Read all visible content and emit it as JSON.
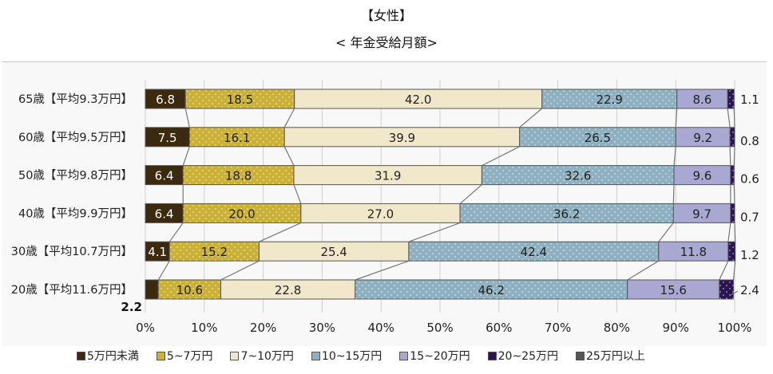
{
  "title": "【女性】",
  "subtitle": "< 年金受給月額>",
  "chart_data": {
    "type": "bar",
    "orientation": "horizontal",
    "stacked": "100%",
    "categories": [
      "65歳【平均9.3万円】",
      "60歳【平均9.5万円】",
      "50歳【平均9.8万円】",
      "40歳【平均9.9万円】",
      "30歳【平均10.7万円】",
      "20歳【平均11.6万円】"
    ],
    "series": [
      {
        "name": "5万円未満",
        "color": "#3b2a0e",
        "values": [
          6.8,
          7.5,
          6.4,
          6.4,
          4.1,
          2.2
        ]
      },
      {
        "name": "5~7万円",
        "color": "#cbb135",
        "values": [
          18.5,
          16.1,
          18.8,
          20.0,
          15.2,
          10.6
        ]
      },
      {
        "name": "7~10万円",
        "color": "#f1e7cb",
        "values": [
          42.0,
          39.9,
          31.9,
          27.0,
          25.4,
          22.8
        ]
      },
      {
        "name": "10~15万円",
        "color": "#8eb0c1",
        "values": [
          22.9,
          26.5,
          32.6,
          36.2,
          42.4,
          46.2
        ]
      },
      {
        "name": "15~20万円",
        "color": "#a9a8d2",
        "values": [
          8.6,
          9.2,
          9.6,
          9.7,
          11.8,
          15.6
        ]
      },
      {
        "name": "20~25万円",
        "color": "#2a1452",
        "values": [
          1.1,
          0.8,
          0.6,
          0.7,
          1.2,
          2.4
        ]
      },
      {
        "name": "25万円以上",
        "color": "#555555",
        "values": [
          0,
          0,
          0,
          0,
          0,
          0
        ]
      }
    ],
    "data_labels": [
      [
        "6.8",
        "18.5",
        "42.0",
        "22.9",
        "8.6",
        "1.1"
      ],
      [
        "7.5",
        "16.1",
        "39.9",
        "26.5",
        "9.2",
        "0.8"
      ],
      [
        "6.4",
        "18.8",
        "31.9",
        "32.6",
        "9.6",
        "0.6"
      ],
      [
        "6.4",
        "20.0",
        "27.0",
        "36.2",
        "9.7",
        "0.7"
      ],
      [
        "4.1",
        "15.2",
        "25.4",
        "42.4",
        "11.8",
        "1.2"
      ],
      [
        "2.2",
        "10.6",
        "22.8",
        "46.2",
        "15.6",
        "2.4"
      ]
    ],
    "xlim": [
      0,
      100
    ],
    "xticks": [
      "0%",
      "10%",
      "20%",
      "30%",
      "40%",
      "50%",
      "60%",
      "70%",
      "80%",
      "90%",
      "100%"
    ],
    "grid": true,
    "legend": "bottom"
  }
}
